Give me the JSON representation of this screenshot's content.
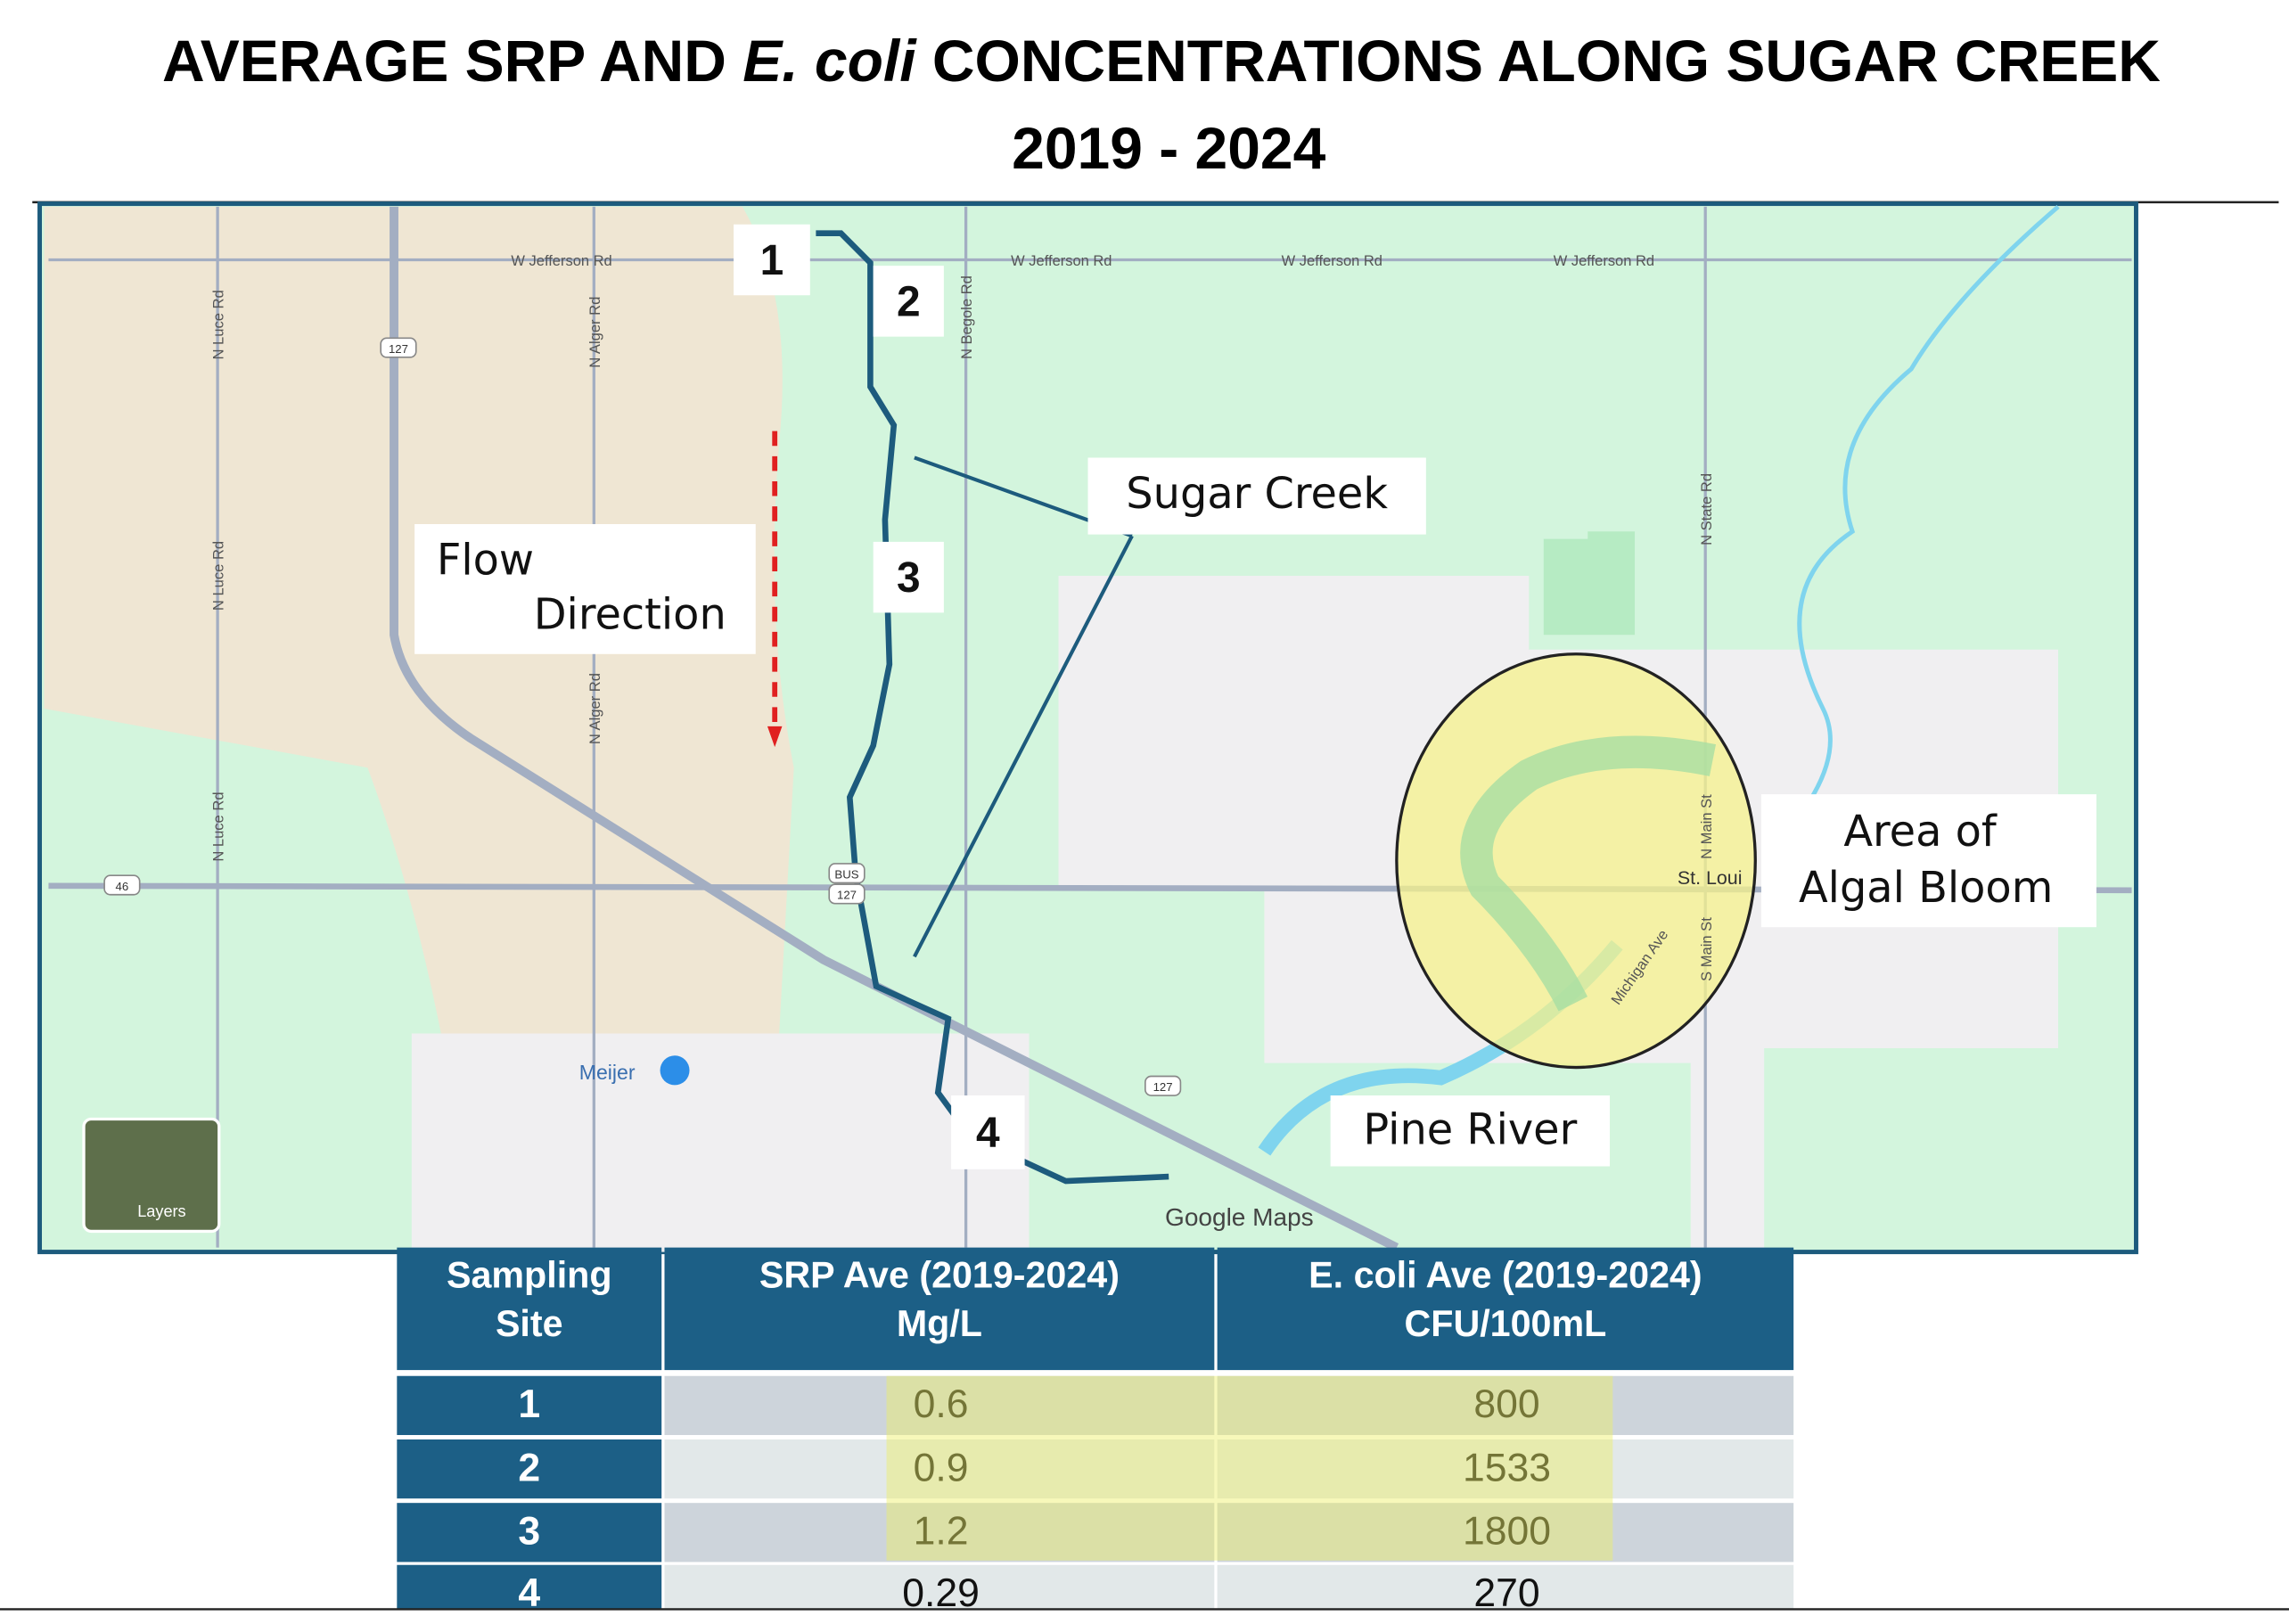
{
  "title": {
    "line1": [
      "AVERAGE SRP AND ",
      "E. coli",
      " CONCENTRATIONS ALONG SUGAR CREEK"
    ],
    "line2": "2019 - 2024"
  },
  "map": {
    "roads": [
      "W Jefferson Rd",
      "W Jefferson Rd",
      "W Jefferson Rd",
      "W Jefferson Rd",
      "N Luce Rd",
      "N Luce Rd",
      "N Luce Rd",
      "N Alger Rd",
      "N Alger Rd",
      "N Begole Rd",
      "N State Rd",
      "N Main St",
      "S Main St",
      "Michigan Ave"
    ],
    "shields": [
      "127",
      "127",
      "127",
      "46",
      "BUS"
    ],
    "places": {
      "town": "St. Loui",
      "store": "Meijer"
    },
    "controls": {
      "layers": "Layers",
      "attribution": "Google Maps"
    }
  },
  "annotations": {
    "sites": [
      "1",
      "2",
      "3",
      "4"
    ],
    "creek": "Sugar Creek",
    "flow": [
      "Flow",
      "Direction"
    ],
    "bloom": [
      "Area of",
      "Algal Bloom"
    ],
    "river": "Pine River"
  },
  "table": {
    "header": [
      [
        "Sampling",
        "Site"
      ],
      [
        "SRP Ave (2019-2024)",
        "Mg/L"
      ],
      [
        "E. coli Ave (2019-2024)",
        "CFU/100mL"
      ]
    ],
    "rows": [
      [
        "1",
        0.6,
        800
      ],
      [
        "2",
        0.9,
        1533
      ],
      [
        "3",
        1.2,
        1800
      ],
      [
        "4",
        0.29,
        270
      ]
    ]
  }
}
